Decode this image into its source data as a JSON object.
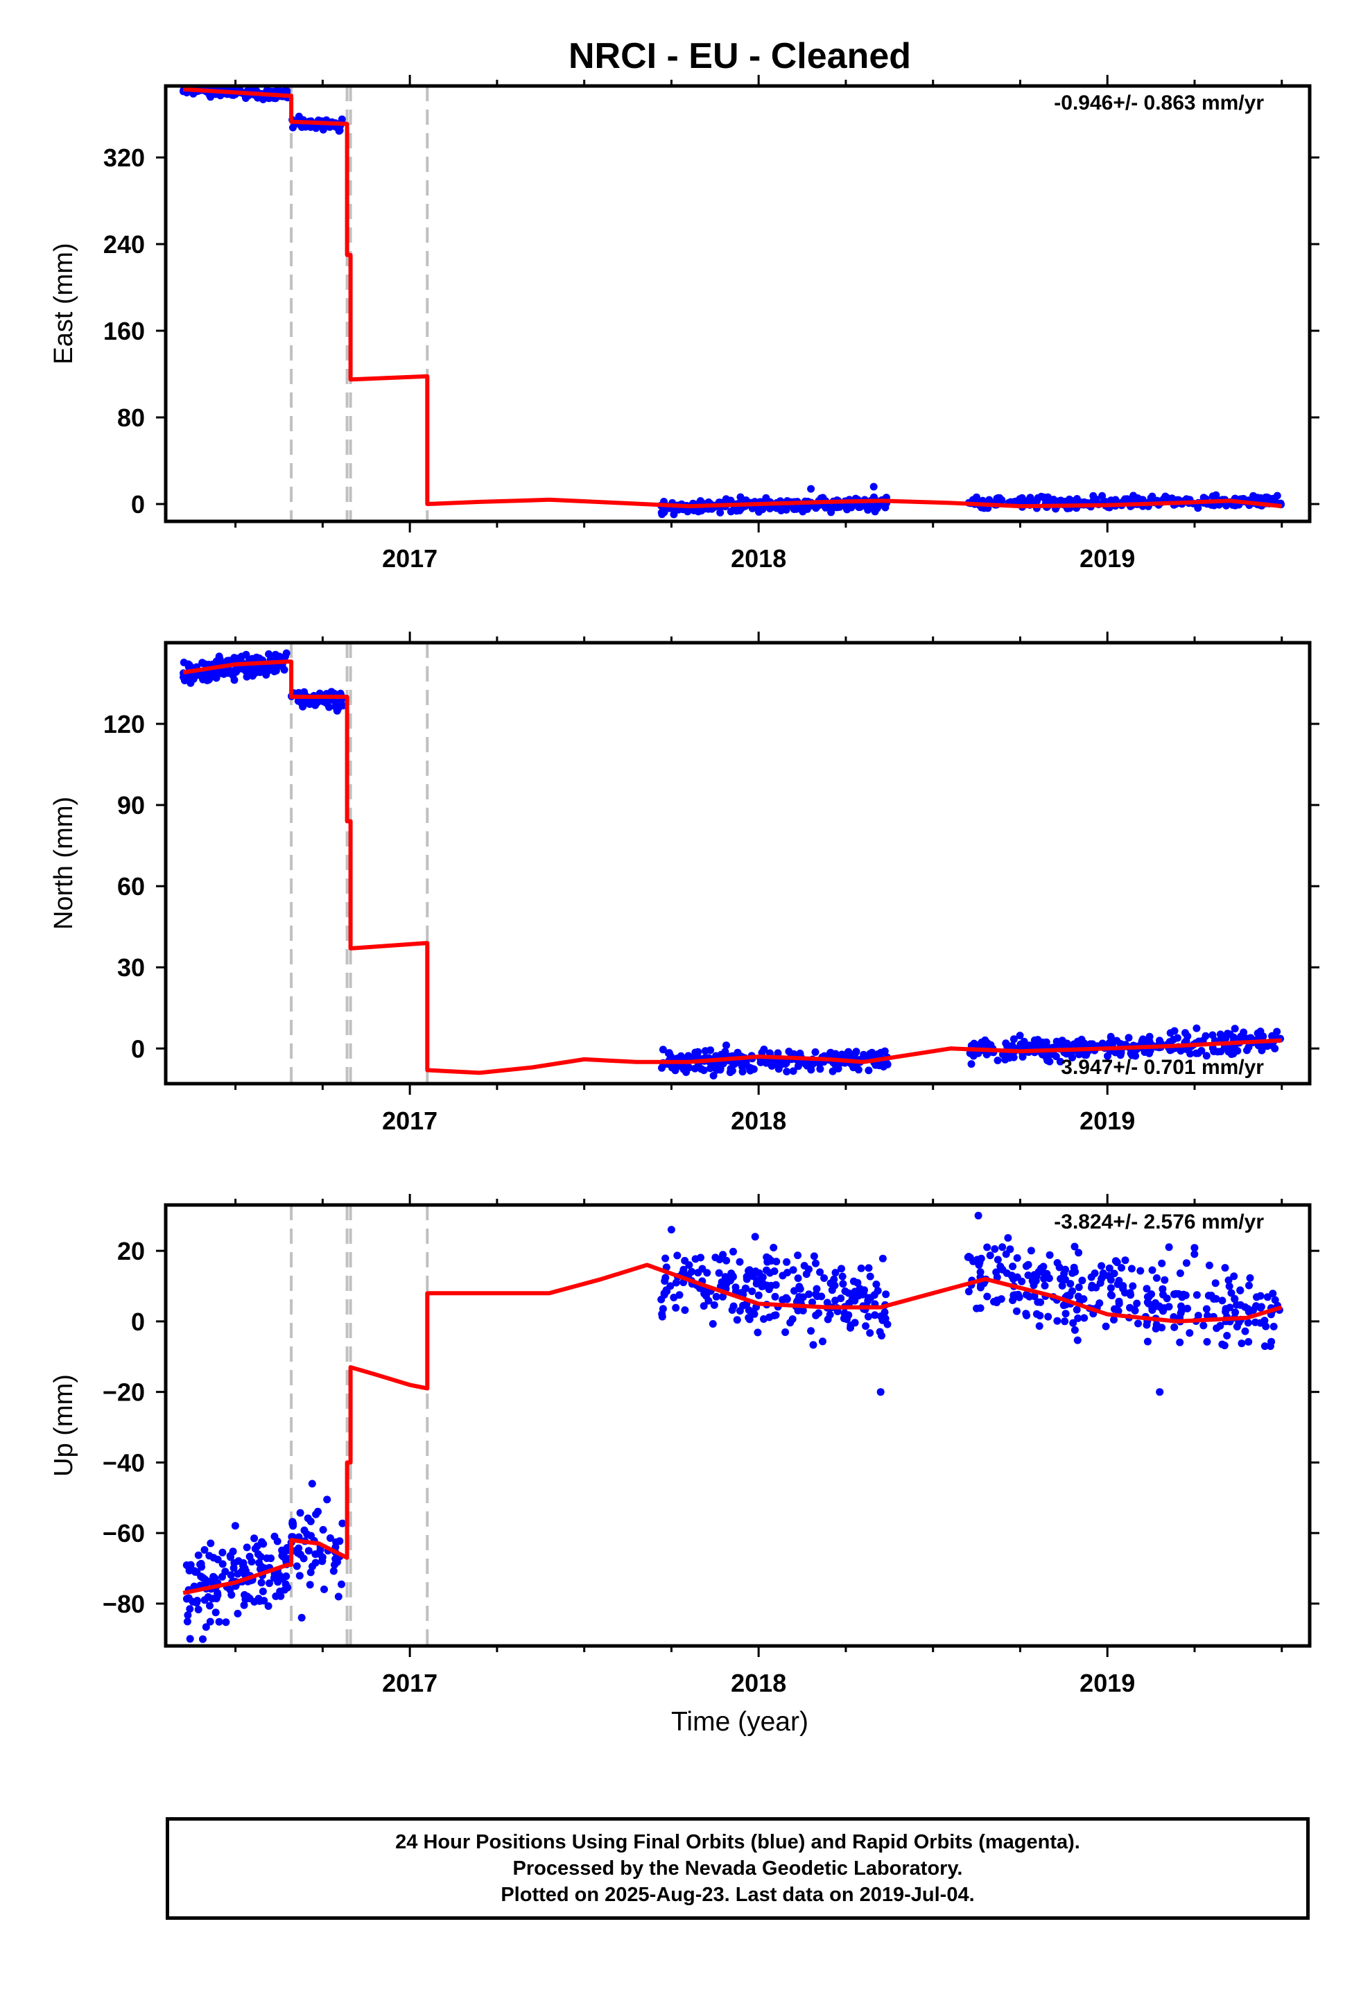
{
  "title": "NRCI  - EU - Cleaned",
  "x_axis_label": "Time (year)",
  "colors": {
    "final_orbits": "#0000ff",
    "model": "#ff0000",
    "offsets": "#c0c0c0",
    "axes": "#000000"
  },
  "footer": {
    "line1": "24 Hour Positions Using Final Orbits (blue) and Rapid Orbits (magenta).",
    "line2": "Processed by the Nevada Geodetic Laboratory.",
    "line3": "Plotted on 2025-Aug-23. Last data on 2019-Jul-04."
  },
  "chart_data": [
    {
      "type": "scatter",
      "panel": "east",
      "ylabel": "East (mm)",
      "xlim": [
        2016.3,
        2019.58
      ],
      "ylim": [
        -16,
        386
      ],
      "xticks": [
        2017,
        2018,
        2019
      ],
      "yticks": [
        0,
        80,
        160,
        240,
        320
      ],
      "rate_label": "-0.946+/- 0.863 mm/yr",
      "rate_label_position": "top-right",
      "offsets": [
        2016.66,
        2016.82,
        2016.83,
        2017.05
      ],
      "series": [
        {
          "role": "data",
          "color": "#0000ff",
          "segments": [
            {
              "x": [
                2016.35,
                2016.65
              ],
              "base": [
                383,
                378
              ],
              "noise": 2.5,
              "n": 150
            },
            {
              "x": [
                2016.66,
                2016.81
              ],
              "base": [
                353,
                350
              ],
              "noise": 2.5,
              "n": 55
            },
            {
              "x": [
                2017.72,
                2018.37
              ],
              "base": [
                -3,
                1
              ],
              "noise": 3.0,
              "n": 240,
              "outliers": [
                [
                  2018.15,
                  14
                ],
                [
                  2018.33,
                  16
                ]
              ]
            },
            {
              "x": [
                2018.6,
                2019.5
              ],
              "base": [
                0,
                3
              ],
              "noise": 2.5,
              "n": 300
            }
          ]
        },
        {
          "role": "model",
          "color": "#ff0000",
          "points": [
            [
              2016.35,
              383
            ],
            [
              2016.5,
              380
            ],
            [
              2016.65,
              377
            ],
            [
              2016.66,
              377
            ],
            [
              2016.66,
              353
            ],
            [
              2016.82,
              351
            ],
            [
              2016.82,
              230
            ],
            [
              2016.83,
              230
            ],
            [
              2016.83,
              115
            ],
            [
              2017.05,
              118
            ],
            [
              2017.05,
              0
            ],
            [
              2017.2,
              2
            ],
            [
              2017.4,
              4
            ],
            [
              2017.6,
              1
            ],
            [
              2017.8,
              -2
            ],
            [
              2018.0,
              0
            ],
            [
              2018.2,
              2
            ],
            [
              2018.35,
              3
            ],
            [
              2018.55,
              1
            ],
            [
              2018.75,
              -2
            ],
            [
              2019.0,
              -1
            ],
            [
              2019.2,
              1
            ],
            [
              2019.35,
              3
            ],
            [
              2019.5,
              -2
            ]
          ]
        }
      ]
    },
    {
      "type": "scatter",
      "panel": "north",
      "ylabel": "North (mm)",
      "xlim": [
        2016.3,
        2019.58
      ],
      "ylim": [
        -13,
        150
      ],
      "xticks": [
        2017,
        2018,
        2019
      ],
      "yticks": [
        0,
        30,
        60,
        90,
        120
      ],
      "rate_label": "3.947+/- 0.701 mm/yr",
      "rate_label_position": "bottom-right",
      "offsets": [
        2016.66,
        2016.82,
        2016.83,
        2017.05
      ],
      "series": [
        {
          "role": "data",
          "color": "#0000ff",
          "segments": [
            {
              "x": [
                2016.35,
                2016.65
              ],
              "base": [
                139,
                143
              ],
              "noise": 2.0,
              "n": 150
            },
            {
              "x": [
                2016.66,
                2016.81
              ],
              "base": [
                130,
                128
              ],
              "noise": 2.0,
              "n": 55
            },
            {
              "x": [
                2017.72,
                2018.37
              ],
              "base": [
                -5,
                -4
              ],
              "noise": 2.0,
              "n": 240
            },
            {
              "x": [
                2018.6,
                2019.5
              ],
              "base": [
                -1,
                3
              ],
              "noise": 2.0,
              "n": 300
            }
          ]
        },
        {
          "role": "model",
          "color": "#ff0000",
          "points": [
            [
              2016.35,
              139
            ],
            [
              2016.5,
              142
            ],
            [
              2016.65,
              143
            ],
            [
              2016.66,
              143
            ],
            [
              2016.66,
              130
            ],
            [
              2016.82,
              130
            ],
            [
              2016.82,
              84
            ],
            [
              2016.83,
              84
            ],
            [
              2016.83,
              37
            ],
            [
              2017.05,
              39
            ],
            [
              2017.05,
              -8
            ],
            [
              2017.2,
              -9
            ],
            [
              2017.35,
              -7
            ],
            [
              2017.5,
              -4
            ],
            [
              2017.65,
              -5
            ],
            [
              2017.8,
              -5
            ],
            [
              2018.0,
              -3
            ],
            [
              2018.2,
              -4
            ],
            [
              2018.3,
              -5
            ],
            [
              2018.45,
              -2
            ],
            [
              2018.55,
              0
            ],
            [
              2018.75,
              -1
            ],
            [
              2019.0,
              0
            ],
            [
              2019.2,
              1
            ],
            [
              2019.5,
              3
            ]
          ]
        }
      ]
    },
    {
      "type": "scatter",
      "panel": "up",
      "ylabel": "Up (mm)",
      "xlim": [
        2016.3,
        2019.58
      ],
      "ylim": [
        -92,
        33
      ],
      "xticks": [
        2017,
        2018,
        2019
      ],
      "yticks": [
        -80,
        -60,
        -40,
        -20,
        0,
        20
      ],
      "rate_label": "-3.824+/- 2.576 mm/yr",
      "rate_label_position": "top-right",
      "offsets": [
        2016.66,
        2016.82,
        2016.83,
        2017.05
      ],
      "series": [
        {
          "role": "data",
          "color": "#0000ff",
          "segments": [
            {
              "x": [
                2016.35,
                2016.65
              ],
              "base": [
                -77,
                -70
              ],
              "noise": 5.5,
              "n": 150,
              "outliers": [
                [
                  2016.37,
                  -90
                ]
              ]
            },
            {
              "x": [
                2016.66,
                2016.81
              ],
              "base": [
                -62,
                -66
              ],
              "noise": 5.0,
              "n": 55,
              "outliers": [
                [
                  2016.72,
                  -46
                ],
                [
                  2016.69,
                  -84
                ]
              ]
            },
            {
              "x": [
                2017.72,
                2018.37
              ],
              "base": [
                12,
                5
              ],
              "noise": 5.5,
              "n": 240,
              "outliers": [
                [
                  2018.35,
                  -20
                ],
                [
                  2017.75,
                  26
                ],
                [
                  2017.99,
                  24
                ]
              ]
            },
            {
              "x": [
                2018.6,
                2019.5
              ],
              "base": [
                13,
                2
              ],
              "noise": 5.5,
              "n": 300,
              "outliers": [
                [
                  2018.63,
                  30
                ],
                [
                  2019.15,
                  -20
                ]
              ]
            }
          ]
        },
        {
          "role": "model",
          "color": "#ff0000",
          "points": [
            [
              2016.35,
              -77
            ],
            [
              2016.5,
              -74
            ],
            [
              2016.65,
              -69
            ],
            [
              2016.66,
              -69
            ],
            [
              2016.66,
              -62
            ],
            [
              2016.74,
              -63
            ],
            [
              2016.82,
              -67
            ],
            [
              2016.82,
              -40
            ],
            [
              2016.83,
              -40
            ],
            [
              2016.83,
              -13
            ],
            [
              2016.9,
              -15
            ],
            [
              2017.0,
              -18
            ],
            [
              2017.05,
              -19
            ],
            [
              2017.05,
              8
            ],
            [
              2017.2,
              8
            ],
            [
              2017.4,
              8
            ],
            [
              2017.55,
              12
            ],
            [
              2017.68,
              16
            ],
            [
              2017.85,
              10
            ],
            [
              2018.0,
              5
            ],
            [
              2018.2,
              4
            ],
            [
              2018.35,
              4
            ],
            [
              2018.5,
              8
            ],
            [
              2018.65,
              12
            ],
            [
              2018.85,
              7
            ],
            [
              2019.0,
              2
            ],
            [
              2019.2,
              0
            ],
            [
              2019.4,
              1
            ],
            [
              2019.5,
              4
            ]
          ]
        }
      ]
    }
  ]
}
